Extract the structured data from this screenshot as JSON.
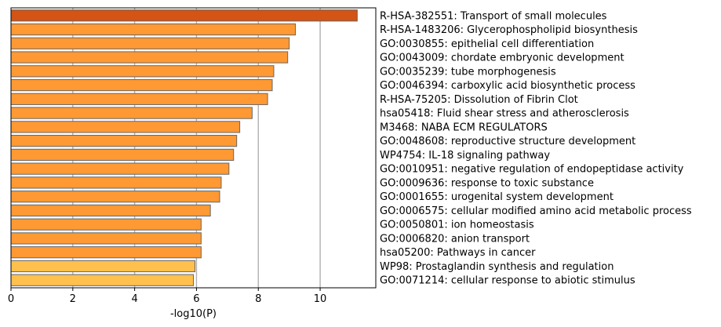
{
  "chart_data": {
    "type": "bar",
    "orientation": "horizontal",
    "xlabel": "-log10(P)",
    "ylabel": "",
    "title": "",
    "xlim": [
      0,
      11.8
    ],
    "xticks": [
      0,
      2,
      4,
      6,
      8,
      10
    ],
    "grid": "vertical gridlines at x ticks",
    "legend": "none",
    "categories": [
      "R-HSA-382551: Transport of small molecules",
      "R-HSA-1483206: Glycerophospholipid biosynthesis",
      "GO:0030855: epithelial cell differentiation",
      "GO:0043009: chordate embryonic development",
      "GO:0035239: tube morphogenesis",
      "GO:0046394: carboxylic acid biosynthetic process",
      "R-HSA-75205: Dissolution of Fibrin Clot",
      "hsa05418: Fluid shear stress and atherosclerosis",
      "M3468: NABA ECM REGULATORS",
      "GO:0048608: reproductive structure development",
      "WP4754: IL-18 signaling pathway",
      "GO:0010951: negative regulation of endopeptidase activity",
      "GO:0009636: response to toxic substance",
      "GO:0001655: urogenital system development",
      "GO:0006575: cellular modified amino acid metabolic process",
      "GO:0050801: ion homeostasis",
      "GO:0006820: anion transport",
      "hsa05200: Pathways in cancer",
      "WP98: Prostaglandin synthesis and regulation",
      "GO:0071214: cellular response to abiotic stimulus"
    ],
    "values": [
      11.2,
      9.2,
      9.0,
      8.95,
      8.5,
      8.45,
      8.3,
      7.8,
      7.4,
      7.3,
      7.2,
      7.05,
      6.8,
      6.75,
      6.45,
      6.15,
      6.15,
      6.15,
      5.95,
      5.9
    ],
    "bar_colors": [
      "#d35414",
      "#ff9933",
      "#ff9933",
      "#ff9933",
      "#ff9933",
      "#ff9933",
      "#ff9933",
      "#ff9933",
      "#ff9933",
      "#ff9933",
      "#ff9933",
      "#ff9933",
      "#ff9933",
      "#ff9933",
      "#ff9933",
      "#ff9933",
      "#ff9933",
      "#ff9933",
      "#ffc04d",
      "#ffc04d"
    ],
    "bar_edge_color": "#666666",
    "grid_color": "#b0b0b0"
  }
}
